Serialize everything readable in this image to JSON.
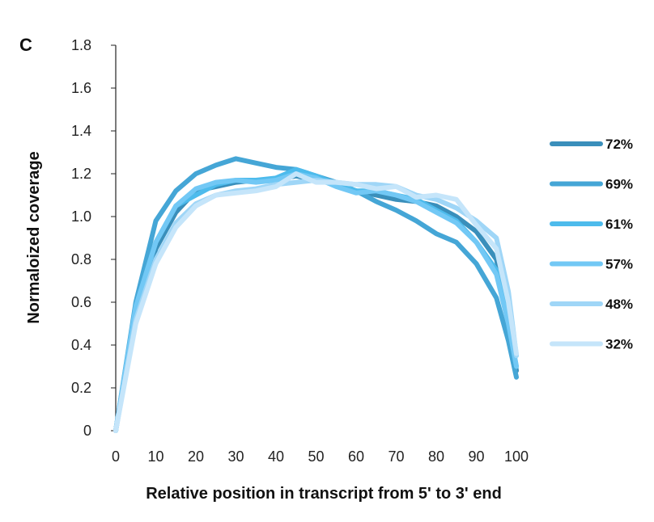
{
  "chart_data": {
    "type": "line",
    "panel_label": "C",
    "title": "",
    "xlabel": "Relative position in transcript from 5' to 3' end",
    "ylabel": "Normaloized coverage",
    "xlim": [
      0,
      100
    ],
    "ylim": [
      0,
      1.8
    ],
    "xticks": [
      "0",
      "10",
      "20",
      "30",
      "40",
      "50",
      "60",
      "70",
      "80",
      "90",
      "100"
    ],
    "yticks": [
      "0",
      "0.2",
      "0.4",
      "0.6",
      "0.8",
      "1.0",
      "1.2",
      "1.4",
      "1.6",
      "1.8"
    ],
    "legend_position": "right",
    "x": [
      0,
      5,
      10,
      15,
      20,
      25,
      30,
      35,
      40,
      45,
      50,
      55,
      60,
      65,
      70,
      75,
      80,
      85,
      90,
      95,
      98,
      100
    ],
    "series": [
      {
        "name": "72%",
        "color": "#3a8fbb",
        "values": [
          0,
          0.55,
          0.85,
          1.02,
          1.12,
          1.14,
          1.16,
          1.17,
          1.17,
          1.19,
          1.17,
          1.15,
          1.12,
          1.1,
          1.08,
          1.07,
          1.05,
          1.0,
          0.93,
          0.8,
          0.55,
          0.28
        ]
      },
      {
        "name": "69%",
        "color": "#45a6d6",
        "values": [
          0,
          0.6,
          0.98,
          1.12,
          1.2,
          1.24,
          1.27,
          1.25,
          1.23,
          1.22,
          1.19,
          1.16,
          1.12,
          1.07,
          1.03,
          0.98,
          0.92,
          0.88,
          0.78,
          0.62,
          0.42,
          0.25
        ]
      },
      {
        "name": "61%",
        "color": "#4dbbec",
        "values": [
          0,
          0.58,
          0.88,
          1.05,
          1.1,
          1.15,
          1.17,
          1.17,
          1.18,
          1.22,
          1.19,
          1.15,
          1.12,
          1.12,
          1.1,
          1.08,
          1.03,
          0.98,
          0.88,
          0.75,
          0.5,
          0.3
        ]
      },
      {
        "name": "57%",
        "color": "#72c8f5",
        "values": [
          0,
          0.58,
          0.88,
          1.05,
          1.13,
          1.16,
          1.17,
          1.16,
          1.17,
          1.2,
          1.18,
          1.14,
          1.11,
          1.12,
          1.1,
          1.07,
          1.02,
          0.97,
          0.88,
          0.73,
          0.5,
          0.3
        ]
      },
      {
        "name": "48%",
        "color": "#9fd6f7",
        "values": [
          0,
          0.52,
          0.8,
          0.97,
          1.06,
          1.1,
          1.12,
          1.13,
          1.15,
          1.16,
          1.17,
          1.16,
          1.15,
          1.15,
          1.14,
          1.1,
          1.08,
          1.04,
          0.98,
          0.9,
          0.65,
          0.35
        ]
      },
      {
        "name": "32%",
        "color": "#c5e5fa",
        "values": [
          0,
          0.5,
          0.78,
          0.95,
          1.05,
          1.1,
          1.11,
          1.12,
          1.14,
          1.2,
          1.16,
          1.16,
          1.15,
          1.13,
          1.14,
          1.09,
          1.1,
          1.08,
          0.96,
          0.85,
          0.6,
          0.36
        ]
      }
    ]
  }
}
